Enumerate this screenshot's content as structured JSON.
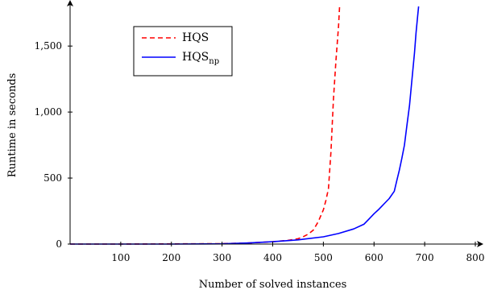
{
  "chart_data": {
    "type": "line",
    "xlabel": "Number of solved instances",
    "ylabel": "Runtime in seconds",
    "xlim": [
      0,
      800
    ],
    "ylim": [
      0,
      1800
    ],
    "xticks": [
      100,
      200,
      300,
      400,
      500,
      600,
      700,
      800
    ],
    "xtick_labels": [
      "100",
      "200",
      "300",
      "400",
      "500",
      "600",
      "700",
      "800"
    ],
    "yticks": [
      0,
      500,
      1000,
      1500
    ],
    "ytick_labels": [
      "0",
      "500",
      "1,000",
      "1,500"
    ],
    "grid": false,
    "legend": "top-left",
    "series": [
      {
        "name": "HQS",
        "legend_main": "HQS",
        "legend_sub": "",
        "color": "#ff0000",
        "dash": "dashed",
        "x": [
          0,
          100,
          200,
          300,
          350,
          400,
          430,
          450,
          460,
          470,
          480,
          490,
          500,
          505,
          510,
          515,
          520,
          525,
          530,
          532
        ],
        "y": [
          0,
          0,
          1,
          3,
          8,
          18,
          28,
          40,
          55,
          75,
          105,
          170,
          260,
          330,
          420,
          700,
          1100,
          1400,
          1650,
          1800
        ]
      },
      {
        "name": "HQSnp",
        "legend_main": "HQS",
        "legend_sub": "np",
        "color": "#0000ff",
        "dash": "solid",
        "x": [
          0,
          100,
          200,
          300,
          350,
          400,
          450,
          500,
          530,
          560,
          580,
          590,
          600,
          610,
          620,
          630,
          640,
          645,
          650,
          655,
          660,
          665,
          670,
          675,
          680,
          683,
          686,
          688
        ],
        "y": [
          0,
          0,
          0,
          2,
          8,
          18,
          32,
          55,
          80,
          115,
          150,
          190,
          230,
          265,
          305,
          345,
          400,
          480,
          560,
          650,
          750,
          900,
          1050,
          1250,
          1450,
          1600,
          1720,
          1800
        ]
      }
    ]
  }
}
